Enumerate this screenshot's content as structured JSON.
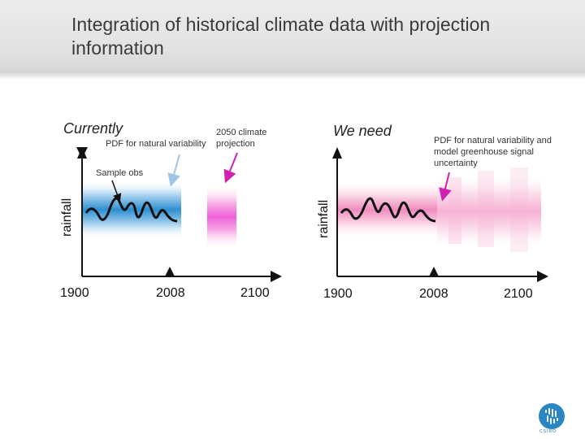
{
  "title": "Integration of historical climate data with projection information",
  "left_panel": {
    "heading": "Currently",
    "label_pdf": "PDF for natural variability",
    "label_projection": "2050 climate projection",
    "label_sample": "Sample obs",
    "ylabel": "rainfall",
    "ticks": [
      "1900",
      "2008",
      "2100"
    ]
  },
  "right_panel": {
    "heading": "We need",
    "label_pdf": "PDF for  natural variability and model greenhouse signal uncertainty",
    "ylabel": "rainfall",
    "ticks": [
      "1900",
      "2008",
      "2100"
    ]
  },
  "logo": {
    "icon": "csiro-logo-icon",
    "text": "CSIRO"
  },
  "colors": {
    "pdf_blue": "#2e8fd0",
    "pdf_pink": "#f060c8",
    "right_pink": "#f2a0c8",
    "arrow_blue": "#9fc6e6",
    "arrow_magenta": "#d020b0",
    "line": "#111111"
  }
}
